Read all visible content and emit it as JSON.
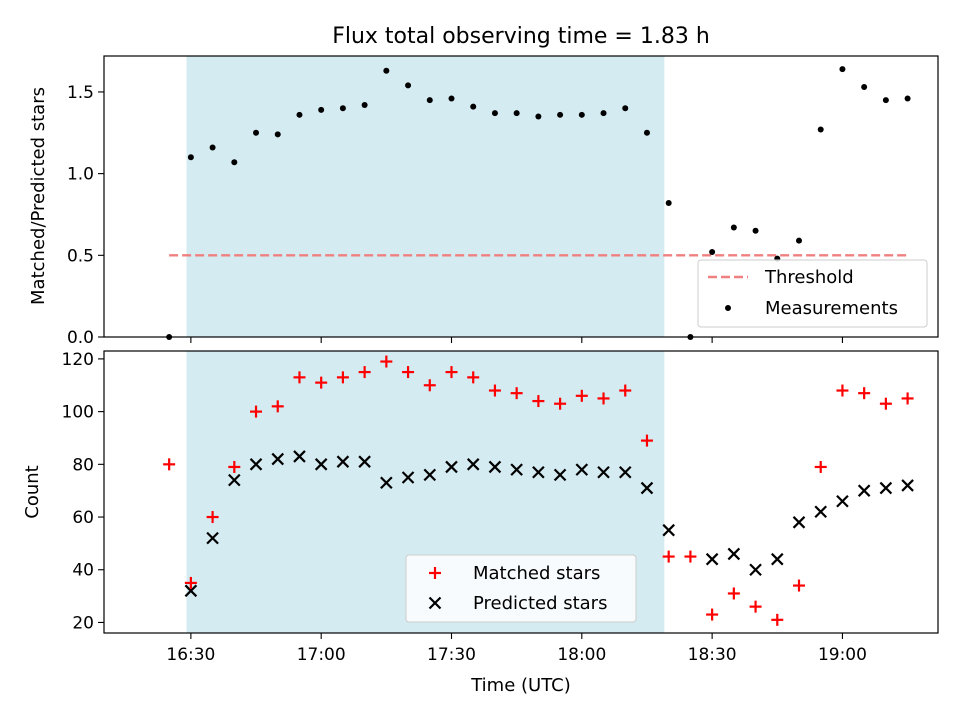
{
  "chart_data": [
    {
      "type": "scatter",
      "title": "Flux total observing time = 1.83 h",
      "xlabel": "",
      "ylabel": "Matched/Predicted stars",
      "ylim": [
        0,
        1.72
      ],
      "yticks": [
        "0.0",
        "0.5",
        "1.0",
        "1.5"
      ],
      "shaded_band": {
        "x_start": "16:29",
        "x_end": "18:19",
        "color": "#add8e6"
      },
      "threshold": {
        "name": "Threshold",
        "value": 0.5,
        "x_start": "16:25",
        "x_end": "19:15",
        "color": "#f08080"
      },
      "series": [
        {
          "name": "Measurements",
          "color": "#000000",
          "x": [
            "16:25",
            "16:30",
            "16:35",
            "16:40",
            "16:45",
            "16:50",
            "16:55",
            "17:00",
            "17:05",
            "17:10",
            "17:15",
            "17:20",
            "17:25",
            "17:30",
            "17:35",
            "17:40",
            "17:45",
            "17:50",
            "17:55",
            "18:00",
            "18:05",
            "18:10",
            "18:15",
            "18:20",
            "18:25",
            "18:30",
            "18:35",
            "18:40",
            "18:45",
            "18:50",
            "18:55",
            "19:00",
            "19:05",
            "19:10",
            "19:15"
          ],
          "values": [
            0.0,
            1.1,
            1.16,
            1.07,
            1.25,
            1.24,
            1.36,
            1.39,
            1.4,
            1.42,
            1.63,
            1.54,
            1.45,
            1.46,
            1.41,
            1.37,
            1.37,
            1.35,
            1.36,
            1.36,
            1.37,
            1.4,
            1.25,
            0.82,
            0.0,
            0.52,
            0.67,
            0.65,
            0.48,
            0.59,
            1.27,
            1.64,
            1.53,
            1.45,
            1.46
          ]
        }
      ],
      "legend": {
        "position": "lower-right",
        "entries": [
          "Threshold",
          "Measurements"
        ]
      }
    },
    {
      "type": "scatter",
      "title": "",
      "xlabel": "Time (UTC)",
      "ylabel": "Count",
      "ylim": [
        16,
        123
      ],
      "yticks": [
        "20",
        "40",
        "60",
        "80",
        "100",
        "120"
      ],
      "xticks": [
        "16:30",
        "17:00",
        "17:30",
        "18:00",
        "18:30",
        "19:00"
      ],
      "shaded_band": {
        "x_start": "16:29",
        "x_end": "18:19",
        "color": "#add8e6"
      },
      "series": [
        {
          "name": "Matched stars",
          "color": "#ff0000",
          "marker": "+",
          "x": [
            "16:25",
            "16:30",
            "16:35",
            "16:40",
            "16:45",
            "16:50",
            "16:55",
            "17:00",
            "17:05",
            "17:10",
            "17:15",
            "17:20",
            "17:25",
            "17:30",
            "17:35",
            "17:40",
            "17:45",
            "17:50",
            "17:55",
            "18:00",
            "18:05",
            "18:10",
            "18:15",
            "18:20",
            "18:25",
            "18:30",
            "18:35",
            "18:40",
            "18:45",
            "18:50",
            "18:55",
            "19:00",
            "19:05",
            "19:10",
            "19:15"
          ],
          "values": [
            80,
            35,
            60,
            79,
            100,
            102,
            113,
            111,
            113,
            115,
            119,
            115,
            110,
            115,
            113,
            108,
            107,
            104,
            103,
            106,
            105,
            108,
            89,
            45,
            45,
            23,
            31,
            26,
            21,
            34,
            79,
            108,
            107,
            103,
            105
          ]
        },
        {
          "name": "Predicted stars",
          "color": "#000000",
          "marker": "x",
          "x": [
            "16:30",
            "16:35",
            "16:40",
            "16:45",
            "16:50",
            "16:55",
            "17:00",
            "17:05",
            "17:10",
            "17:15",
            "17:20",
            "17:25",
            "17:30",
            "17:35",
            "17:40",
            "17:45",
            "17:50",
            "17:55",
            "18:00",
            "18:05",
            "18:10",
            "18:15",
            "18:20",
            "18:30",
            "18:35",
            "18:40",
            "18:45",
            "18:50",
            "18:55",
            "19:00",
            "19:05",
            "19:10",
            "19:15"
          ],
          "values": [
            32,
            52,
            74,
            80,
            82,
            83,
            80,
            81,
            81,
            73,
            75,
            76,
            79,
            80,
            79,
            78,
            77,
            76,
            78,
            77,
            77,
            71,
            55,
            44,
            46,
            40,
            44,
            58,
            62,
            66,
            70,
            71,
            72
          ]
        }
      ],
      "legend": {
        "position": "lower-center",
        "entries": [
          "Matched stars",
          "Predicted stars"
        ]
      }
    }
  ]
}
